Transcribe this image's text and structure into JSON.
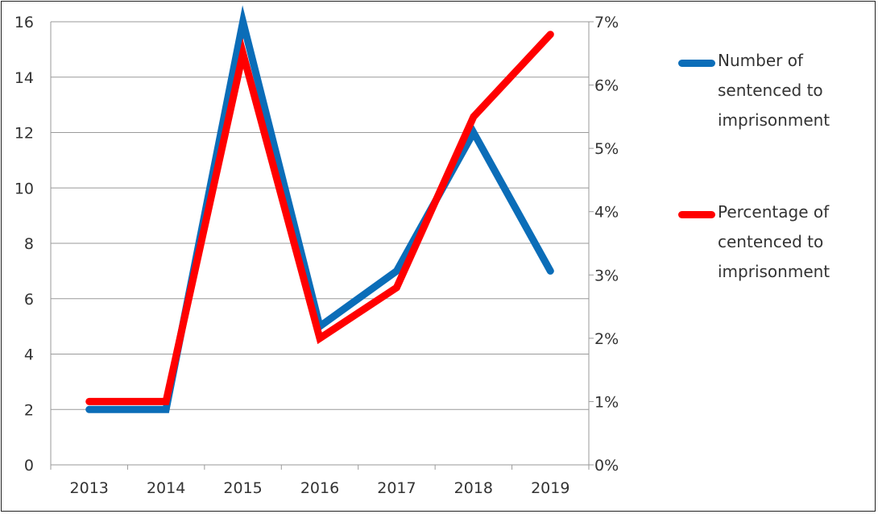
{
  "chart_data": {
    "type": "line",
    "categories": [
      "2013",
      "2014",
      "2015",
      "2016",
      "2017",
      "2018",
      "2019"
    ],
    "series": [
      {
        "name": "Number of sentenced to imprisonment",
        "axis": "left",
        "color": "#0b6db8",
        "values": [
          2,
          2,
          16,
          5,
          7,
          12,
          7
        ]
      },
      {
        "name": "Percentage of centenced to imprisonment",
        "axis": "right",
        "color": "#ff0000",
        "values": [
          1.0,
          1.0,
          6.5,
          2.0,
          2.8,
          5.5,
          6.8
        ]
      }
    ],
    "y_left": {
      "ylim": [
        0,
        16
      ],
      "ticks": [
        "0",
        "2",
        "4",
        "6",
        "8",
        "10",
        "12",
        "14",
        "16"
      ]
    },
    "y_right": {
      "ylim": [
        0,
        7
      ],
      "ticks": [
        "0%",
        "1%",
        "2%",
        "3%",
        "4%",
        "5%",
        "6%",
        "7%"
      ]
    },
    "grid": true,
    "legend_position": "right"
  }
}
